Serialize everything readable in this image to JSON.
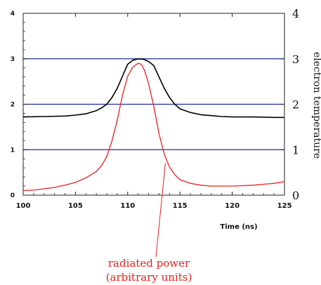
{
  "chart_data": {
    "type": "line",
    "xlabel": "Time (ns)",
    "ylabel_right": "electron temperature",
    "xlim": [
      100,
      125
    ],
    "ylim": [
      0,
      4
    ],
    "x_ticks": [
      "100",
      "105",
      "110",
      "115",
      "120",
      "125"
    ],
    "y_ticks_left": [
      "0",
      "1",
      "2",
      "3",
      "4"
    ],
    "y_ticks_right": [
      "0",
      "1",
      "2",
      "3",
      "4"
    ],
    "hgrid": [
      1,
      2,
      3
    ],
    "colors": {
      "temperature": "#000000",
      "power": "#e8201e",
      "grid": "#1a2f9a"
    },
    "series": [
      {
        "key": "temperature",
        "x": [
          100,
          102,
          104,
          105,
          106,
          107,
          107.5,
          108,
          108.5,
          109,
          109.5,
          110,
          110.5,
          111,
          111.5,
          112,
          112.5,
          113,
          113.5,
          114,
          114.5,
          115,
          116,
          117,
          118,
          119,
          120,
          122,
          124,
          125
        ],
        "y": [
          1.72,
          1.73,
          1.74,
          1.76,
          1.79,
          1.86,
          1.92,
          2.0,
          2.15,
          2.35,
          2.62,
          2.88,
          2.97,
          3.0,
          2.99,
          2.94,
          2.85,
          2.6,
          2.35,
          2.15,
          2.0,
          1.9,
          1.82,
          1.77,
          1.75,
          1.73,
          1.72,
          1.72,
          1.71,
          1.71
        ]
      },
      {
        "key": "power",
        "x": [
          100,
          101,
          102,
          103,
          104,
          105,
          106,
          107,
          107.5,
          108,
          108.5,
          109,
          109.5,
          110,
          110.5,
          111,
          111.3,
          111.6,
          112,
          112.5,
          113,
          113.5,
          114,
          114.5,
          115,
          116,
          117,
          118,
          120,
          122,
          124,
          125
        ],
        "y": [
          0.1,
          0.11,
          0.14,
          0.17,
          0.22,
          0.28,
          0.38,
          0.52,
          0.65,
          0.85,
          1.2,
          1.65,
          2.2,
          2.62,
          2.82,
          2.9,
          2.88,
          2.75,
          2.45,
          1.95,
          1.35,
          0.9,
          0.62,
          0.45,
          0.34,
          0.26,
          0.22,
          0.2,
          0.2,
          0.22,
          0.26,
          0.3
        ]
      }
    ],
    "annotation": {
      "lines": [
        "radiated power",
        "(arbitrary units)"
      ],
      "target": [
        113.6,
        0.7
      ]
    }
  }
}
